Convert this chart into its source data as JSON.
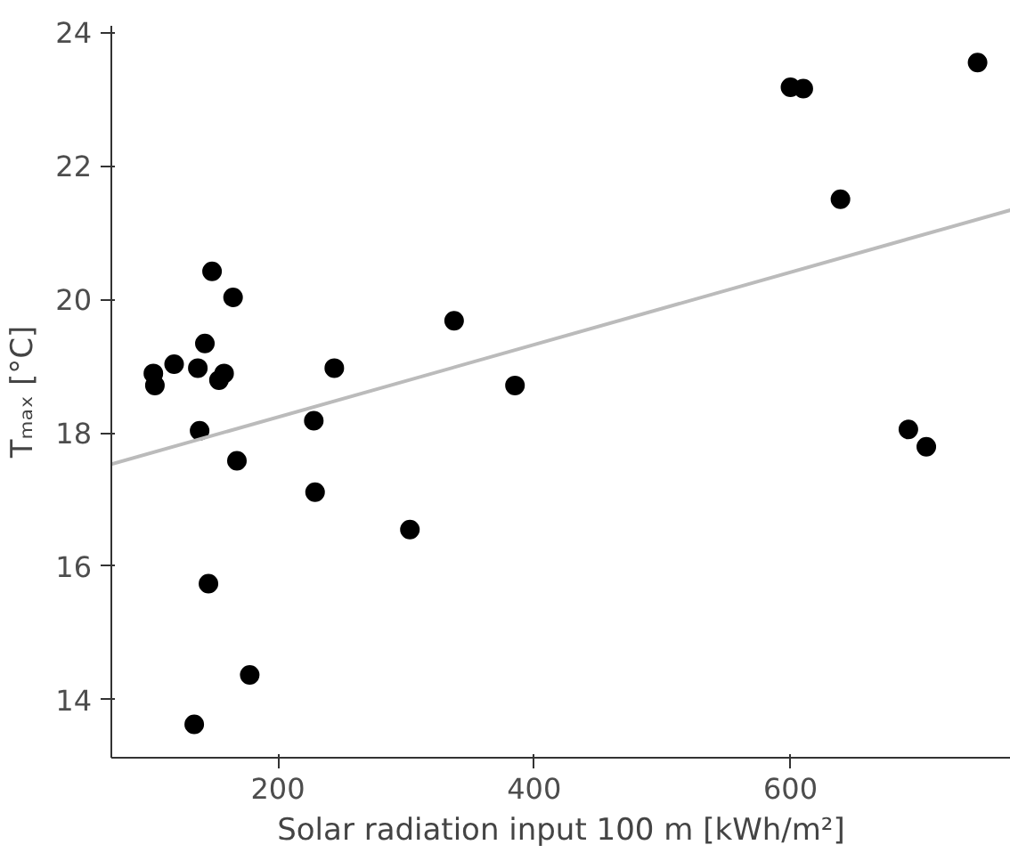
{
  "chart_data": {
    "type": "scatter",
    "xlabel": "Solar radiation input 100 m [kWh/m²]",
    "ylabel": "Tₘₐₓ [°C]",
    "xlim": [
      70,
      772
    ],
    "ylim": [
      13.13,
      24.1
    ],
    "xticks": [
      200,
      400,
      600
    ],
    "yticks": [
      14,
      16,
      18,
      20,
      22,
      24
    ],
    "grid": false,
    "series": [
      {
        "marker": "circle",
        "color": "#000000",
        "x": [
          102.8,
          104,
          119,
          137.5,
          138.9,
          143,
          148.6,
          145.8,
          154,
          158,
          165,
          168,
          178,
          134.7,
          228,
          229,
          244,
          303,
          337.5,
          385,
          600,
          610,
          639,
          692,
          706,
          746
        ],
        "values": [
          18.89,
          18.71,
          19.03,
          18.97,
          18.03,
          19.34,
          20.42,
          15.74,
          18.79,
          18.89,
          20.03,
          17.58,
          14.37,
          13.63,
          18.18,
          17.11,
          18.97,
          16.55,
          19.68,
          18.71,
          23.18,
          23.16,
          21.5,
          18.05,
          17.79,
          23.55
        ]
      },
      {
        "type": "line",
        "color": "#bbbbbb",
        "x": [
          70,
          772
        ],
        "values": [
          17.53,
          21.34
        ]
      }
    ]
  }
}
